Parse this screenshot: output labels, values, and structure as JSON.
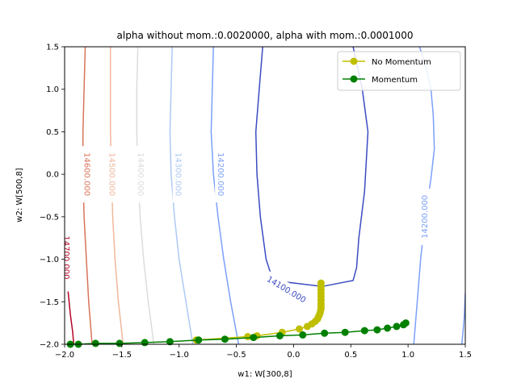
{
  "chart_data": {
    "type": "line",
    "title": "alpha without mom.:0.0020000, alpha with mom.:0.0001000",
    "xlabel": "w1: W[300,8]",
    "ylabel": "w2: W[500,8]",
    "xlim": [
      -2.0,
      1.5
    ],
    "ylim": [
      -2.0,
      1.5
    ],
    "x_ticks": [
      "-2.0",
      "-1.5",
      "-1.0",
      "-0.5",
      "0.0",
      "0.5",
      "1.0",
      "1.5"
    ],
    "y_ticks": [
      "-2.0",
      "-1.5",
      "-1.0",
      "-0.5",
      "0.0",
      "0.5",
      "1.0",
      "1.5"
    ],
    "grid": false,
    "legend_position": "top-right",
    "contours": [
      {
        "level": "14700.000",
        "color": "#b40426",
        "points": [
          [
            -1.97,
            -1.38
          ],
          [
            -1.95,
            -1.65
          ],
          [
            -1.93,
            -1.85
          ],
          [
            -1.92,
            -2.0
          ]
        ],
        "label_at": [
          -1.98,
          -0.98
        ],
        "label_rotation": 90
      },
      {
        "level": "14600.000",
        "color": "#d8735a",
        "points": [
          [
            -1.82,
            1.5
          ],
          [
            -1.83,
            1.0
          ],
          [
            -1.84,
            0.5
          ],
          [
            -1.84,
            0.0
          ],
          [
            -1.83,
            -0.5
          ],
          [
            -1.81,
            -1.0
          ],
          [
            -1.79,
            -1.5
          ],
          [
            -1.76,
            -2.0
          ]
        ],
        "label_at": [
          -1.8,
          0.0
        ],
        "label_rotation": 90
      },
      {
        "level": "14500.000",
        "color": "#f0b79c",
        "points": [
          [
            -1.6,
            1.5
          ],
          [
            -1.6,
            1.0
          ],
          [
            -1.6,
            0.5
          ],
          [
            -1.59,
            0.0
          ],
          [
            -1.58,
            -0.5
          ],
          [
            -1.56,
            -1.0
          ],
          [
            -1.53,
            -1.5
          ],
          [
            -1.49,
            -2.0
          ]
        ],
        "label_at": [
          -1.58,
          0.0
        ],
        "label_rotation": 90
      },
      {
        "level": "14400.000",
        "color": "#dddcdc",
        "points": [
          [
            -1.36,
            1.5
          ],
          [
            -1.37,
            1.0
          ],
          [
            -1.37,
            0.5
          ],
          [
            -1.36,
            0.0
          ],
          [
            -1.34,
            -0.5
          ],
          [
            -1.31,
            -1.0
          ],
          [
            -1.27,
            -1.5
          ],
          [
            -1.22,
            -2.0
          ]
        ],
        "label_at": [
          -1.33,
          0.0
        ],
        "label_rotation": 90
      },
      {
        "level": "14300.000",
        "color": "#aec9f4",
        "points": [
          [
            -1.06,
            1.5
          ],
          [
            -1.07,
            1.0
          ],
          [
            -1.08,
            0.5
          ],
          [
            -1.07,
            0.0
          ],
          [
            -1.04,
            -0.5
          ],
          [
            -1.0,
            -1.0
          ],
          [
            -0.94,
            -1.5
          ],
          [
            -0.88,
            -2.0
          ]
        ],
        "label_at": [
          -1.0,
          0.0
        ],
        "label_rotation": 90
      },
      {
        "level": "14200.000",
        "color": "#7b9ff9",
        "points": [
          [
            -0.7,
            1.5
          ],
          [
            -0.71,
            1.0
          ],
          [
            -0.72,
            0.5
          ],
          [
            -0.7,
            0.0
          ],
          [
            -0.66,
            -0.5
          ],
          [
            -0.61,
            -1.0
          ],
          [
            -0.55,
            -1.5
          ],
          [
            -0.48,
            -2.0
          ]
        ],
        "label_at": [
          -0.63,
          0.0
        ],
        "label_rotation": 90
      },
      {
        "level": "14200.000",
        "color": "#7b9ff9",
        "points": [
          [
            1.47,
            -2.0
          ],
          [
            1.49,
            -1.7
          ],
          [
            1.5,
            -1.4
          ]
        ],
        "label_at": null,
        "label_rotation": 0
      },
      {
        "level": "14200.000",
        "color": "#7b9ff9",
        "points": [
          [
            1.05,
            -2.0
          ],
          [
            1.08,
            -1.5
          ],
          [
            1.11,
            -1.0
          ],
          [
            1.15,
            -0.5
          ],
          [
            1.2,
            -0.05
          ],
          [
            1.23,
            0.3
          ],
          [
            1.22,
            0.7
          ],
          [
            1.2,
            1.0
          ],
          [
            1.15,
            1.3
          ],
          [
            1.1,
            1.5
          ]
        ],
        "label_at": [
          1.14,
          -0.5
        ],
        "label_rotation": -90
      },
      {
        "level": "14100.000",
        "color": "#3b4cc0",
        "points": [
          [
            -0.27,
            1.5
          ],
          [
            -0.3,
            1.0
          ],
          [
            -0.33,
            0.5
          ],
          [
            -0.32,
            0.0
          ],
          [
            -0.29,
            -0.5
          ],
          [
            -0.24,
            -1.0
          ],
          [
            -0.18,
            -1.25
          ],
          [
            0.25,
            -1.32
          ],
          [
            0.52,
            -1.25
          ],
          [
            0.55,
            -1.1
          ],
          [
            0.57,
            -0.75
          ],
          [
            0.62,
            -0.2
          ],
          [
            0.65,
            0.5
          ],
          [
            0.6,
            1.0
          ],
          [
            0.52,
            1.5
          ]
        ],
        "label_at": [
          -0.06,
          -1.35
        ],
        "label_rotation": 31
      }
    ],
    "series": [
      {
        "name": "No Momentum",
        "color": "#bfbf00",
        "x": [
          -0.85,
          -0.4,
          -0.32,
          -0.1,
          0.05,
          0.12,
          0.16,
          0.19,
          0.21,
          0.22,
          0.23,
          0.235,
          0.24,
          0.24,
          0.24,
          0.24,
          0.24,
          0.24,
          0.24,
          0.24,
          0.24
        ],
        "y": [
          -1.95,
          -1.91,
          -1.9,
          -1.86,
          -1.82,
          -1.79,
          -1.76,
          -1.73,
          -1.7,
          -1.67,
          -1.64,
          -1.61,
          -1.58,
          -1.55,
          -1.52,
          -1.48,
          -1.44,
          -1.4,
          -1.36,
          -1.32,
          -1.28
        ]
      },
      {
        "name": "Momentum",
        "color": "#008000",
        "x": [
          -1.95,
          -1.88,
          -1.73,
          -1.52,
          -1.3,
          -1.08,
          -0.83,
          -0.6,
          -0.35,
          -0.12,
          0.08,
          0.27,
          0.45,
          0.62,
          0.73,
          0.82,
          0.9,
          0.96,
          0.98
        ],
        "y": [
          -2.0,
          -2.0,
          -1.99,
          -1.99,
          -1.98,
          -1.97,
          -1.95,
          -1.94,
          -1.92,
          -1.9,
          -1.89,
          -1.87,
          -1.86,
          -1.84,
          -1.83,
          -1.81,
          -1.79,
          -1.77,
          -1.75
        ]
      }
    ]
  }
}
